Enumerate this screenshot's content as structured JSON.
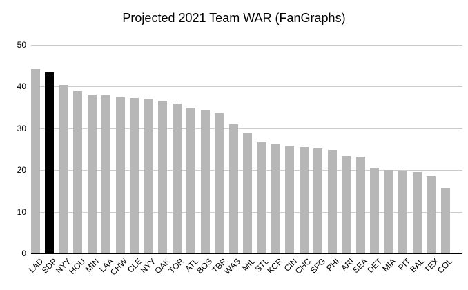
{
  "chart_data": {
    "type": "bar",
    "title": "Projected 2021 Team WAR (FanGraphs)",
    "categories": [
      "LAD",
      "SDP",
      "NYY",
      "HOU",
      "MIN",
      "LAA",
      "CHW",
      "CLE",
      "NYY",
      "OAK",
      "TOR",
      "ATL",
      "BOS",
      "TBR",
      "WAS",
      "MIL",
      "STL",
      "KCR",
      "CIN",
      "CHC",
      "SFG",
      "PHI",
      "ARI",
      "SEA",
      "DET",
      "MIA",
      "PIT",
      "BAL",
      "TEX",
      "COL"
    ],
    "values": [
      44.2,
      43.4,
      40.4,
      38.9,
      38.1,
      37.9,
      37.5,
      37.2,
      37.1,
      36.6,
      36.0,
      35.0,
      34.2,
      33.6,
      31.0,
      28.9,
      26.6,
      26.4,
      25.9,
      25.5,
      25.1,
      24.9,
      23.4,
      23.2,
      20.6,
      20.1,
      19.8,
      19.5,
      18.6,
      15.8
    ],
    "highlight_index": 1,
    "highlighted_category": "SDP",
    "bar_color": "#b7b7b7",
    "highlight_color": "#000000",
    "grid_color": "#cccccc",
    "axis_line_color": "#000000",
    "y_ticks": [
      0,
      10,
      20,
      30,
      40,
      50
    ],
    "ylim": [
      0,
      50
    ],
    "grid": true,
    "legend": "none",
    "xlabel": "",
    "ylabel": ""
  }
}
